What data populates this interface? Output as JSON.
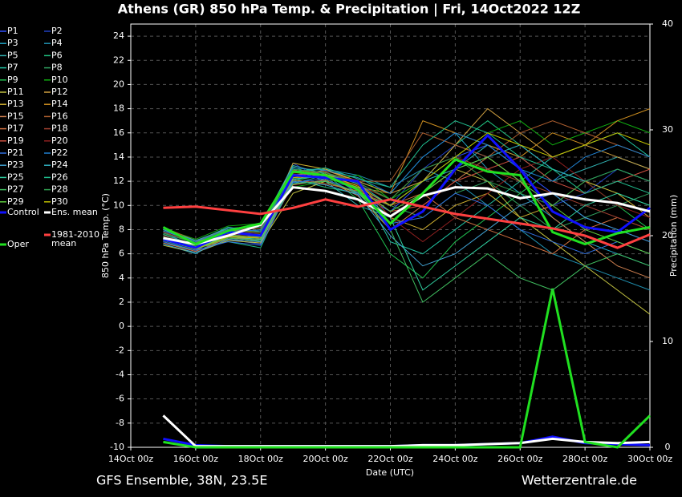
{
  "chart_data": {
    "type": "line",
    "title": "Athens  (GR)  850 hPa Temp. & Precipitation | Fri, 14Oct2022 12Z",
    "subtitle_left": "GFS Ensemble, 38N, 23.5E",
    "subtitle_right": "Wetterzentrale.de",
    "xlabel": "Date (UTC)",
    "ylabel": "850 hPa Temp. (°C)",
    "y2label": "Precipitation (mm)",
    "grid": true,
    "x": [
      1,
      2,
      3,
      4,
      5,
      6,
      7,
      8,
      9,
      10,
      11,
      12,
      13,
      14,
      15,
      16
    ],
    "xlim": [
      0,
      16
    ],
    "xticks": [
      {
        "value": 0,
        "label": "14Oct 00z"
      },
      {
        "value": 2,
        "label": "16Oct 00z"
      },
      {
        "value": 4,
        "label": "18Oct 00z"
      },
      {
        "value": 6,
        "label": "20Oct 00z"
      },
      {
        "value": 8,
        "label": "22Oct 00z"
      },
      {
        "value": 10,
        "label": "24Oct 00z"
      },
      {
        "value": 12,
        "label": "26Oct 00z"
      },
      {
        "value": 14,
        "label": "28Oct 00z"
      },
      {
        "value": 16,
        "label": "30Oct 00z"
      }
    ],
    "ylim": [
      -10,
      25
    ],
    "yticks": [
      -10,
      -8,
      -6,
      -4,
      -2,
      0,
      2,
      4,
      6,
      8,
      10,
      12,
      14,
      16,
      18,
      20,
      22,
      24
    ],
    "y2lim": [
      0,
      40
    ],
    "y2ticks": [
      0,
      10,
      20,
      30,
      40
    ],
    "series": [
      {
        "name": "P1",
        "color": "#3050ff",
        "values": [
          7.8,
          6.5,
          7.2,
          6.8,
          12.5,
          12.8,
          11,
          9.5,
          12,
          14,
          15,
          13,
          11,
          9,
          8,
          7
        ]
      },
      {
        "name": "P2",
        "color": "#2040c0",
        "values": [
          7.0,
          6.2,
          8.0,
          7.2,
          13.5,
          12,
          11.5,
          10,
          13,
          15,
          14,
          12,
          10,
          11,
          13,
          12
        ]
      },
      {
        "name": "P3",
        "color": "#20a0c0",
        "values": [
          6.8,
          6.0,
          7.5,
          7.0,
          11.8,
          12.5,
          12,
          11,
          14,
          16,
          13,
          11,
          9,
          7,
          6,
          5
        ]
      },
      {
        "name": "P4",
        "color": "#2090b0",
        "values": [
          7.5,
          6.8,
          7.8,
          8.0,
          12,
          13,
          12.5,
          11.5,
          13,
          12,
          10,
          8,
          6,
          5,
          4,
          3
        ]
      },
      {
        "name": "P5",
        "color": "#30b0b0",
        "values": [
          8.0,
          7.0,
          8.2,
          7.8,
          13,
          12,
          10,
          9,
          11,
          13,
          15,
          14,
          12,
          13,
          14,
          13
        ]
      },
      {
        "name": "P6",
        "color": "#20c080",
        "values": [
          7.2,
          6.5,
          7.0,
          6.5,
          12.2,
          11.5,
          11,
          10,
          12,
          15,
          17,
          15,
          13,
          12,
          11,
          10
        ]
      },
      {
        "name": "P7",
        "color": "#20c0a0",
        "values": [
          6.9,
          6.3,
          7.6,
          7.3,
          12.8,
          13,
          12,
          7,
          6,
          8,
          10,
          12,
          14,
          15,
          16,
          14
        ]
      },
      {
        "name": "P8",
        "color": "#30a060",
        "values": [
          7.7,
          6.9,
          8.1,
          8.2,
          13.2,
          12.2,
          11,
          10,
          9,
          11,
          12,
          10,
          8,
          9,
          10,
          11
        ]
      },
      {
        "name": "P9",
        "color": "#20c050",
        "values": [
          7.4,
          6.6,
          7.3,
          7.1,
          12,
          12.6,
          10.5,
          6,
          4,
          7,
          9,
          11,
          13,
          12,
          10,
          8
        ]
      },
      {
        "name": "P10",
        "color": "#10b010",
        "values": [
          8.1,
          7.2,
          8.3,
          8.5,
          11.5,
          12,
          12.5,
          10.5,
          12,
          14,
          16,
          17,
          15,
          16,
          17,
          16
        ]
      },
      {
        "name": "P11",
        "color": "#c0c040",
        "values": [
          6.7,
          6.1,
          7.1,
          6.9,
          11,
          12,
          11,
          9,
          11,
          13,
          12,
          9,
          7,
          5,
          3,
          1
        ]
      },
      {
        "name": "P12",
        "color": "#d0a040",
        "values": [
          7.9,
          7.0,
          7.7,
          7.6,
          12.5,
          12.9,
          12,
          11,
          12,
          15,
          18,
          16,
          14,
          15,
          14,
          13
        ]
      },
      {
        "name": "P13",
        "color": "#d0b030",
        "values": [
          7.1,
          6.4,
          7.4,
          7.4,
          13.5,
          13,
          12,
          9,
          8,
          10,
          11,
          9,
          10,
          12,
          11,
          9
        ]
      },
      {
        "name": "P14",
        "color": "#d09020",
        "values": [
          7.6,
          6.7,
          7.9,
          7.9,
          12.3,
          12.4,
          11.5,
          11,
          17,
          16,
          15,
          14,
          16,
          15,
          17,
          18
        ]
      },
      {
        "name": "P15",
        "color": "#d08050",
        "values": [
          7.3,
          6.5,
          7.2,
          7.0,
          11.7,
          12.1,
          10.8,
          8,
          10,
          12,
          14,
          12,
          9,
          7,
          5,
          4
        ]
      },
      {
        "name": "P16",
        "color": "#b06030",
        "values": [
          8.2,
          7.1,
          8.0,
          8.1,
          12.9,
          12.7,
          12,
          12,
          16,
          15,
          14,
          16,
          17,
          16,
          15,
          14
        ]
      },
      {
        "name": "P17",
        "color": "#d07040",
        "values": [
          6.9,
          6.2,
          7.3,
          7.2,
          12.1,
          11.8,
          11.2,
          10,
          11,
          9,
          8,
          7,
          6,
          8,
          9,
          8
        ]
      },
      {
        "name": "P18",
        "color": "#a04030",
        "values": [
          7.8,
          6.9,
          7.8,
          7.7,
          12.6,
          12.3,
          11.7,
          10.5,
          13,
          14,
          13,
          12,
          11,
          10,
          9,
          8
        ]
      },
      {
        "name": "P19",
        "color": "#d05040",
        "values": [
          7.2,
          6.6,
          7.5,
          7.3,
          12.4,
          12.8,
          11.4,
          9.5,
          10,
          12,
          13,
          14,
          12,
          11,
          12,
          13
        ]
      },
      {
        "name": "P20",
        "color": "#902020",
        "values": [
          7.5,
          6.8,
          7.6,
          7.5,
          12.7,
          12.5,
          12.1,
          9,
          7,
          9,
          11,
          13,
          14,
          12,
          10,
          9
        ]
      },
      {
        "name": "P21",
        "color": "#3070e0",
        "values": [
          7.0,
          6.3,
          7.0,
          6.7,
          11.9,
          12.2,
          11,
          8.5,
          9,
          11,
          10,
          8,
          7,
          6,
          7,
          6
        ]
      },
      {
        "name": "P22",
        "color": "#2080d0",
        "values": [
          7.9,
          7.0,
          8.0,
          7.9,
          13.1,
          12.9,
          12.3,
          11,
          14,
          16,
          15,
          13,
          12,
          14,
          15,
          14
        ]
      },
      {
        "name": "P23",
        "color": "#40a0d0",
        "values": [
          6.8,
          6.1,
          7.2,
          7.0,
          12.0,
          11.7,
          10.9,
          7.5,
          5,
          6,
          8,
          10,
          11,
          9,
          8,
          7
        ]
      },
      {
        "name": "P24",
        "color": "#30b0c0",
        "values": [
          8.0,
          7.1,
          8.1,
          8.3,
          13.3,
          12.6,
          11.8,
          10,
          12,
          13,
          14,
          15,
          13,
          12,
          13,
          12
        ]
      },
      {
        "name": "P25",
        "color": "#30d0a0",
        "values": [
          7.3,
          6.5,
          7.4,
          7.2,
          12.2,
          12.4,
          11.3,
          9,
          3,
          5,
          7,
          9,
          8,
          10,
          11,
          10
        ]
      },
      {
        "name": "P26",
        "color": "#20c090",
        "values": [
          7.6,
          6.7,
          7.7,
          7.6,
          12.8,
          13.1,
          12.2,
          11.5,
          15,
          17,
          16,
          14,
          13,
          11,
          12,
          11
        ]
      },
      {
        "name": "P27",
        "color": "#40c060",
        "values": [
          7.1,
          6.4,
          7.3,
          7.1,
          11.8,
          12,
          11.1,
          8,
          2,
          4,
          6,
          4,
          3,
          5,
          6,
          5
        ]
      },
      {
        "name": "P28",
        "color": "#30a050",
        "values": [
          7.7,
          6.9,
          7.9,
          7.8,
          13,
          12.7,
          11.9,
          10.5,
          13,
          14,
          12,
          11,
          10,
          12,
          13,
          12
        ]
      },
      {
        "name": "P29",
        "color": "#60d040",
        "values": [
          7.4,
          6.6,
          7.5,
          7.4,
          12.5,
          12.3,
          11.5,
          9.5,
          11,
          13,
          14,
          12,
          10,
          8,
          7,
          6
        ]
      },
      {
        "name": "P30",
        "color": "#c0c000",
        "values": [
          7.2,
          6.4,
          7.4,
          7.3,
          12.3,
          12.6,
          11.6,
          10,
          12,
          14,
          16,
          15,
          14,
          15,
          16,
          15
        ]
      },
      {
        "name": "Control",
        "color": "#1010ff",
        "values": [
          7.2,
          6.5,
          7.8,
          7.5,
          12.5,
          12.3,
          12,
          8,
          9.5,
          13,
          15.8,
          13,
          9.5,
          8.2,
          7.8,
          9.8
        ],
        "precip": [
          0.8,
          0.2,
          0.1,
          0.1,
          0.1,
          0.1,
          0.1,
          0.1,
          0.2,
          0.2,
          0.3,
          0.4,
          1.0,
          0.4,
          0.3,
          0.2
        ]
      },
      {
        "name": "Ens. mean",
        "color": "#ffffff",
        "values": [
          7.3,
          6.8,
          7.5,
          8.4,
          11.5,
          11.2,
          10.5,
          9.1,
          10.8,
          11.5,
          11.4,
          10.6,
          11,
          10.5,
          10.2,
          9.5
        ],
        "precip": [
          3,
          0.1,
          0.1,
          0.1,
          0.1,
          0.1,
          0.1,
          0.1,
          0.2,
          0.2,
          0.3,
          0.4,
          0.8,
          0.5,
          0.4,
          0.5
        ]
      },
      {
        "name": "Oper",
        "color": "#20e020",
        "values": [
          8.2,
          6.8,
          7.9,
          8.5,
          12.8,
          12.5,
          11.3,
          8.5,
          11,
          13.8,
          12.8,
          12.5,
          7.8,
          6.8,
          7.7,
          8.2
        ],
        "precip": [
          0.5,
          0,
          0,
          0,
          0,
          0,
          0,
          0,
          0,
          0,
          0,
          0,
          15,
          0.5,
          0,
          3
        ]
      },
      {
        "name": "1981-2010 mean",
        "color": "#ff4040",
        "values": [
          9.8,
          9.9,
          9.6,
          9.3,
          9.8,
          10.5,
          9.9,
          10.5,
          9.9,
          9.3,
          8.9,
          8.5,
          8.1,
          7.5,
          6.5,
          7.6
        ]
      }
    ]
  }
}
